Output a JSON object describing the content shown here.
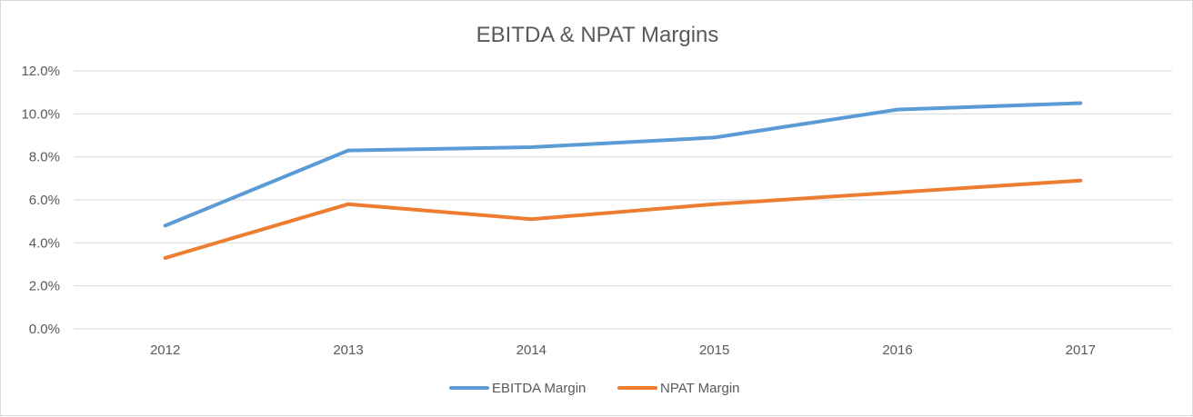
{
  "chart_data": {
    "type": "line",
    "title": "EBITDA & NPAT Margins",
    "xlabel": "",
    "ylabel": "",
    "categories": [
      "2012",
      "2013",
      "2014",
      "2015",
      "2016",
      "2017"
    ],
    "y_ticks": [
      "0.0%",
      "2.0%",
      "4.0%",
      "6.0%",
      "8.0%",
      "10.0%",
      "12.0%"
    ],
    "ylim": [
      0,
      12
    ],
    "y_unit": "%",
    "grid": true,
    "legend_position": "bottom",
    "series": [
      {
        "name": "EBITDA Margin",
        "color": "#5b9bd5",
        "values": [
          4.8,
          8.3,
          8.45,
          8.9,
          10.2,
          10.5
        ]
      },
      {
        "name": "NPAT Margin",
        "color": "#ed7d31",
        "values": [
          3.3,
          5.8,
          5.1,
          5.8,
          6.35,
          6.9
        ]
      }
    ]
  }
}
